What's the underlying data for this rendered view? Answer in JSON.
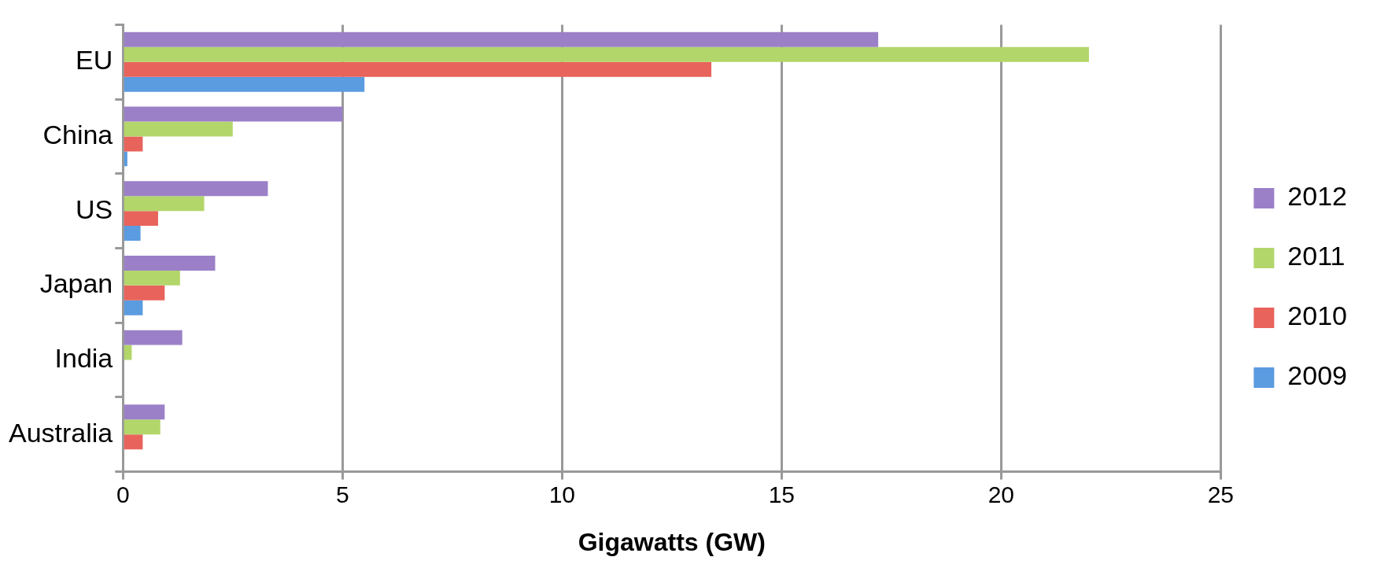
{
  "chart_data": {
    "type": "bar",
    "orientation": "horizontal",
    "xlabel": "Gigawatts (GW)",
    "categories": [
      "EU",
      "China",
      "US",
      "Japan",
      "India",
      "Australia"
    ],
    "series": [
      {
        "name": "2012",
        "color": "#9b80c8",
        "values": [
          17.2,
          5.0,
          3.3,
          2.1,
          1.35,
          0.95
        ]
      },
      {
        "name": "2011",
        "color": "#b3d66a",
        "values": [
          22.0,
          2.5,
          1.85,
          1.3,
          0.2,
          0.85
        ]
      },
      {
        "name": "2010",
        "color": "#e8635b",
        "values": [
          13.4,
          0.45,
          0.8,
          0.95,
          null,
          0.45
        ]
      },
      {
        "name": "2009",
        "color": "#5b9be0",
        "values": [
          5.5,
          0.1,
          0.4,
          0.45,
          null,
          null
        ]
      }
    ],
    "xlim": [
      0,
      25
    ],
    "xticks": [
      0,
      5,
      10,
      15,
      20,
      25
    ],
    "grid": "x",
    "legend": "right"
  }
}
